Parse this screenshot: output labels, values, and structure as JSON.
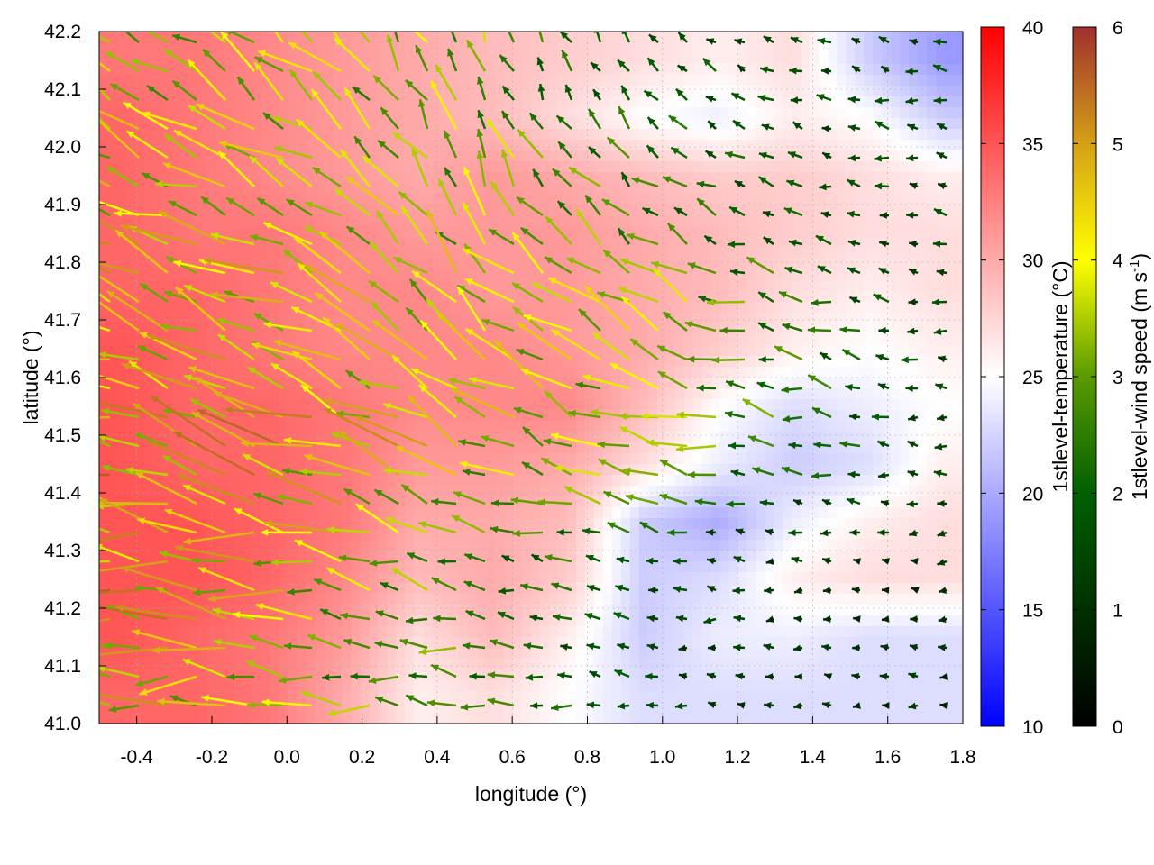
{
  "chart_data": {
    "type": "heatmap",
    "xlabel": "longitude (°)",
    "ylabel": "latitude (°)",
    "xlim": [
      -0.5,
      1.8
    ],
    "ylim": [
      41.0,
      42.2
    ],
    "xticks": [
      "-0.4",
      "-0.2",
      "0.0",
      "0.2",
      "0.4",
      "0.6",
      "0.8",
      "1.0",
      "1.2",
      "1.4",
      "1.6",
      "1.8"
    ],
    "yticks": [
      "41.0",
      "41.1",
      "41.2",
      "41.3",
      "41.4",
      "41.5",
      "41.6",
      "41.7",
      "41.8",
      "41.9",
      "42.0",
      "42.1",
      "42.2"
    ],
    "grid": true,
    "temperature": {
      "label": "1stlevel-temperature (°C)",
      "range": [
        10,
        40
      ],
      "ticks": [
        "10",
        "15",
        "20",
        "25",
        "30",
        "35",
        "40"
      ],
      "colors": {
        "low": "#0000ff",
        "mid": "#ffffff",
        "high": "#ff0000"
      },
      "lon_centers": [
        -0.45,
        -0.25,
        -0.05,
        0.15,
        0.35,
        0.55,
        0.75,
        0.95,
        1.15,
        1.35,
        1.55,
        1.75
      ],
      "lat_centers": [
        42.15,
        42.05,
        41.95,
        41.85,
        41.75,
        41.65,
        41.55,
        41.45,
        41.35,
        41.25,
        41.15,
        41.05
      ],
      "values": [
        [
          33,
          33,
          32,
          31,
          30,
          29,
          28,
          27,
          26,
          27,
          22,
          19
        ],
        [
          34,
          33,
          32,
          31,
          30,
          29,
          27,
          25,
          24,
          26,
          25,
          22
        ],
        [
          34,
          33,
          32,
          31,
          30,
          31,
          30,
          29,
          28,
          28,
          27,
          26
        ],
        [
          34,
          33,
          33,
          32,
          31,
          31,
          31,
          30,
          29,
          28,
          27,
          27
        ],
        [
          34,
          34,
          33,
          32,
          32,
          31,
          31,
          30,
          29,
          27,
          26,
          27
        ],
        [
          35,
          34,
          33,
          32,
          32,
          32,
          31,
          30,
          28,
          26,
          25,
          26
        ],
        [
          35,
          34,
          34,
          33,
          32,
          32,
          32,
          29,
          25,
          23,
          24,
          25
        ],
        [
          35,
          34,
          34,
          33,
          31,
          31,
          30,
          27,
          24,
          22,
          23,
          26
        ],
        [
          35,
          35,
          34,
          33,
          30,
          30,
          29,
          22,
          20,
          24,
          26,
          27
        ],
        [
          35,
          35,
          34,
          32,
          29,
          30,
          28,
          22,
          23,
          26,
          27,
          27
        ],
        [
          35,
          34,
          33,
          31,
          27,
          29,
          26,
          22,
          24,
          24,
          23,
          23
        ],
        [
          34,
          34,
          33,
          30,
          26,
          27,
          25,
          23,
          23,
          23,
          23,
          23
        ]
      ]
    },
    "wind": {
      "label_main": "1stlevel-wind speed (m s",
      "label_sup": "-1",
      "label_end": ")",
      "range": [
        0,
        6
      ],
      "ticks": [
        "0",
        "1",
        "2",
        "3",
        "4",
        "5",
        "6"
      ],
      "colors": [
        "#000000",
        "#003000",
        "#006000",
        "#5a9a00",
        "#ffff00",
        "#d4a017",
        "#a0302e"
      ],
      "lon_centers": [
        -0.3,
        0.1,
        0.5,
        0.9,
        1.3,
        1.7
      ],
      "lat_centers": [
        42.1,
        41.9,
        41.7,
        41.5,
        41.3,
        41.1
      ],
      "speed": [
        [
          3.5,
          3.5,
          3.0,
          2.0,
          1.5,
          1.5
        ],
        [
          4.0,
          3.8,
          3.5,
          2.5,
          2.0,
          1.5
        ],
        [
          4.2,
          4.0,
          3.8,
          3.5,
          2.5,
          1.5
        ],
        [
          4.5,
          4.2,
          4.0,
          3.5,
          2.5,
          1.5
        ],
        [
          4.5,
          4.0,
          2.5,
          2.0,
          1.2,
          1.0
        ],
        [
          4.0,
          3.0,
          2.5,
          1.5,
          1.0,
          1.0
        ]
      ],
      "direction_deg": [
        [
          150,
          140,
          110,
          120,
          160,
          170
        ],
        [
          160,
          150,
          120,
          140,
          165,
          170
        ],
        [
          160,
          155,
          140,
          150,
          165,
          170
        ],
        [
          165,
          160,
          150,
          160,
          170,
          175
        ],
        [
          175,
          170,
          165,
          170,
          175,
          180
        ],
        [
          178,
          175,
          170,
          175,
          180,
          180
        ]
      ]
    }
  }
}
